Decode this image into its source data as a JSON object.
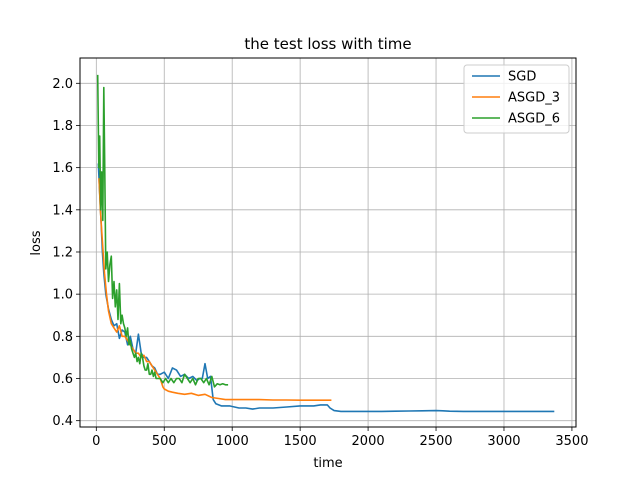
{
  "chart_data": {
    "type": "line",
    "title": "the test loss with time",
    "xlabel": "time",
    "ylabel": "loss",
    "xlim": [
      -120,
      3530
    ],
    "ylim": [
      0.37,
      2.12
    ],
    "xticks": [
      0,
      500,
      1000,
      1500,
      2000,
      2500,
      3000,
      3500
    ],
    "yticks": [
      0.4,
      0.6,
      0.8,
      1.0,
      1.2,
      1.4,
      1.6,
      1.8,
      2.0
    ],
    "xtick_labels": [
      "0",
      "500",
      "1000",
      "1500",
      "2000",
      "2500",
      "3000",
      "3500"
    ],
    "ytick_labels": [
      "0.4",
      "0.6",
      "0.8",
      "1.0",
      "1.2",
      "1.4",
      "1.6",
      "1.8",
      "2.0"
    ],
    "grid": true,
    "legend_position": "top-right",
    "series": [
      {
        "name": "SGD",
        "color": "#1f77b4",
        "x": [
          15,
          25,
          35,
          45,
          55,
          70,
          90,
          110,
          130,
          150,
          170,
          190,
          210,
          230,
          250,
          270,
          290,
          310,
          330,
          350,
          370,
          390,
          410,
          430,
          450,
          470,
          500,
          530,
          560,
          590,
          620,
          650,
          680,
          710,
          740,
          760,
          780,
          800,
          820,
          840,
          860,
          880,
          920,
          980,
          1050,
          1100,
          1150,
          1200,
          1300,
          1400,
          1500,
          1550,
          1600,
          1650,
          1700,
          1720,
          1750,
          1800,
          1900,
          2000,
          2100,
          2200,
          2300,
          2400,
          2500,
          2550,
          2600,
          2700,
          2800,
          2900,
          3000,
          3100,
          3200,
          3300,
          3370
        ],
        "y": [
          1.62,
          1.48,
          1.34,
          1.2,
          1.1,
          1.0,
          0.93,
          0.88,
          0.85,
          0.86,
          0.79,
          0.83,
          0.82,
          0.76,
          0.8,
          0.74,
          0.72,
          0.81,
          0.72,
          0.7,
          0.7,
          0.68,
          0.66,
          0.65,
          0.62,
          0.62,
          0.63,
          0.6,
          0.65,
          0.64,
          0.61,
          0.62,
          0.6,
          0.61,
          0.59,
          0.6,
          0.6,
          0.67,
          0.6,
          0.61,
          0.5,
          0.48,
          0.47,
          0.47,
          0.46,
          0.46,
          0.455,
          0.46,
          0.46,
          0.465,
          0.47,
          0.47,
          0.47,
          0.475,
          0.475,
          0.46,
          0.448,
          0.444,
          0.444,
          0.444,
          0.444,
          0.445,
          0.446,
          0.447,
          0.448,
          0.447,
          0.445,
          0.444,
          0.444,
          0.444,
          0.444,
          0.444,
          0.444,
          0.444,
          0.444
        ]
      },
      {
        "name": "ASGD_3",
        "color": "#ff7f0e",
        "x": [
          20,
          30,
          40,
          50,
          60,
          75,
          90,
          110,
          130,
          150,
          170,
          190,
          210,
          230,
          250,
          270,
          290,
          310,
          330,
          350,
          370,
          390,
          410,
          430,
          450,
          470,
          490,
          500,
          530,
          560,
          600,
          650,
          700,
          750,
          800,
          850,
          900,
          950,
          1000,
          1050,
          1100,
          1200,
          1300,
          1400,
          1500,
          1600,
          1700,
          1730
        ],
        "y": [
          1.55,
          1.4,
          1.3,
          1.2,
          1.1,
          1.0,
          0.92,
          0.86,
          0.84,
          0.82,
          0.85,
          0.8,
          0.8,
          0.78,
          0.76,
          0.74,
          0.72,
          0.72,
          0.7,
          0.71,
          0.68,
          0.68,
          0.66,
          0.64,
          0.62,
          0.6,
          0.56,
          0.55,
          0.54,
          0.535,
          0.53,
          0.525,
          0.53,
          0.52,
          0.525,
          0.51,
          0.505,
          0.5,
          0.5,
          0.5,
          0.5,
          0.5,
          0.498,
          0.498,
          0.497,
          0.497,
          0.497,
          0.497
        ]
      },
      {
        "name": "ASGD_6",
        "color": "#2ca02c",
        "x": [
          10,
          18,
          25,
          32,
          40,
          48,
          55,
          62,
          70,
          80,
          90,
          100,
          110,
          120,
          130,
          140,
          150,
          160,
          170,
          180,
          190,
          200,
          210,
          220,
          230,
          240,
          250,
          260,
          270,
          280,
          290,
          300,
          310,
          320,
          330,
          340,
          350,
          360,
          370,
          380,
          390,
          400,
          410,
          420,
          430,
          440,
          450,
          470,
          490,
          510,
          530,
          550,
          570,
          590,
          610,
          630,
          650,
          670,
          690,
          710,
          730,
          750,
          770,
          790,
          810,
          830,
          850,
          870,
          890,
          910,
          930,
          950,
          970
        ],
        "y": [
          2.04,
          1.6,
          1.75,
          1.4,
          1.58,
          1.35,
          1.98,
          1.62,
          1.12,
          1.2,
          1.06,
          1.14,
          1.18,
          0.98,
          1.06,
          0.94,
          1.02,
          0.88,
          1.05,
          0.86,
          0.9,
          0.86,
          0.84,
          0.8,
          0.84,
          0.76,
          0.78,
          0.74,
          0.72,
          0.7,
          0.72,
          0.68,
          0.7,
          0.67,
          0.72,
          0.7,
          0.66,
          0.64,
          0.64,
          0.67,
          0.62,
          0.62,
          0.64,
          0.61,
          0.63,
          0.6,
          0.6,
          0.6,
          0.58,
          0.6,
          0.58,
          0.6,
          0.58,
          0.6,
          0.6,
          0.58,
          0.62,
          0.6,
          0.58,
          0.6,
          0.57,
          0.6,
          0.6,
          0.58,
          0.6,
          0.57,
          0.61,
          0.56,
          0.575,
          0.57,
          0.575,
          0.57,
          0.57
        ]
      }
    ]
  }
}
